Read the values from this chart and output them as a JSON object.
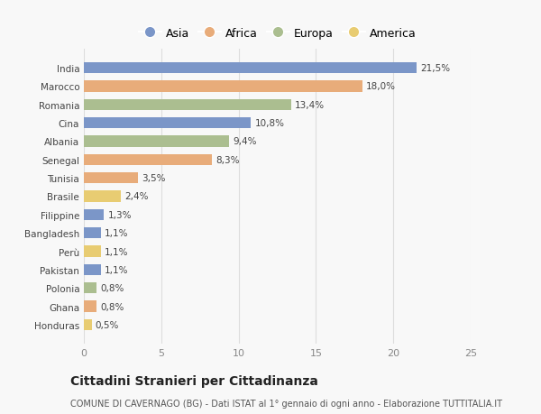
{
  "countries": [
    "India",
    "Marocco",
    "Romania",
    "Cina",
    "Albania",
    "Senegal",
    "Tunisia",
    "Brasile",
    "Filippine",
    "Bangladesh",
    "Perù",
    "Pakistan",
    "Polonia",
    "Ghana",
    "Honduras"
  ],
  "values": [
    21.5,
    18.0,
    13.4,
    10.8,
    9.4,
    8.3,
    3.5,
    2.4,
    1.3,
    1.1,
    1.1,
    1.1,
    0.8,
    0.8,
    0.5
  ],
  "labels": [
    "21,5%",
    "18,0%",
    "13,4%",
    "10,8%",
    "9,4%",
    "8,3%",
    "3,5%",
    "2,4%",
    "1,3%",
    "1,1%",
    "1,1%",
    "1,1%",
    "0,8%",
    "0,8%",
    "0,5%"
  ],
  "continents": [
    "Asia",
    "Africa",
    "Europa",
    "Asia",
    "Europa",
    "Africa",
    "Africa",
    "America",
    "Asia",
    "Asia",
    "America",
    "Asia",
    "Europa",
    "Africa",
    "America"
  ],
  "colors": {
    "Asia": "#7B96C8",
    "Africa": "#E8AC7A",
    "Europa": "#ABBE90",
    "America": "#E8CC72"
  },
  "legend_order": [
    "Asia",
    "Africa",
    "Europa",
    "America"
  ],
  "xlim": [
    0,
    25
  ],
  "xticks": [
    0,
    5,
    10,
    15,
    20,
    25
  ],
  "title": "Cittadini Stranieri per Cittadinanza",
  "subtitle": "COMUNE DI CAVERNAGO (BG) - Dati ISTAT al 1° gennaio di ogni anno - Elaborazione TUTTITALIA.IT",
  "background_color": "#f8f8f8",
  "bar_height": 0.6,
  "label_fontsize": 7.5,
  "ytick_fontsize": 7.5,
  "xtick_fontsize": 8,
  "title_fontsize": 10,
  "subtitle_fontsize": 7,
  "legend_fontsize": 9
}
